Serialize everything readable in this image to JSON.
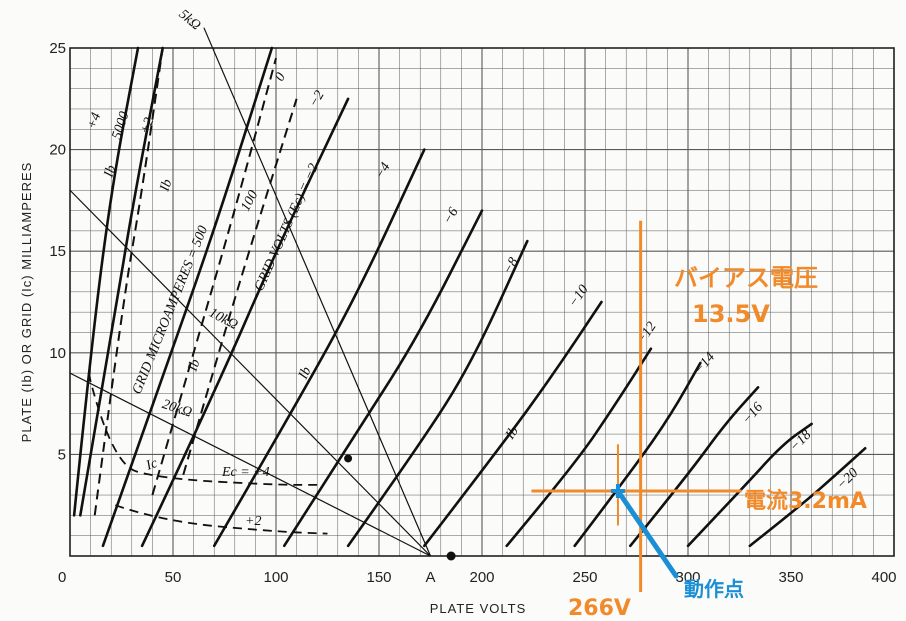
{
  "chart_data": {
    "type": "line",
    "xlabel": "PLATE VOLTS",
    "ylabel": "PLATE (Ib) OR GRID (Ic) MILLIAMPERES",
    "xlim": [
      0,
      400
    ],
    "ylim": [
      0,
      25
    ],
    "x_ticks": [
      "0",
      "50",
      "100",
      "150",
      "A",
      "200",
      "250",
      "300",
      "350",
      "400"
    ],
    "y_ticks": [
      "25",
      "20",
      "15",
      "10",
      "5"
    ],
    "grid": true,
    "plate_curves": [
      {
        "label": "+4",
        "points": [
          [
            2,
            2
          ],
          [
            10,
            10
          ],
          [
            20,
            18
          ],
          [
            33,
            25
          ]
        ]
      },
      {
        "label": "+2",
        "points": [
          [
            5,
            2
          ],
          [
            22,
            12
          ],
          [
            30,
            17
          ],
          [
            45,
            25
          ]
        ]
      },
      {
        "label": "0",
        "points": [
          [
            16,
            0.5
          ],
          [
            42,
            8
          ],
          [
            70,
            16
          ],
          [
            98,
            25
          ]
        ]
      },
      {
        "label": "−2",
        "points": [
          [
            35,
            0.5
          ],
          [
            70,
            8
          ],
          [
            100,
            15
          ],
          [
            135,
            22.5
          ]
        ]
      },
      {
        "label": "−4",
        "points": [
          [
            70,
            0.5
          ],
          [
            110,
            7.5
          ],
          [
            140,
            13
          ],
          [
            172,
            20
          ]
        ]
      },
      {
        "label": "−6",
        "points": [
          [
            104,
            0.5
          ],
          [
            142,
            6.5
          ],
          [
            170,
            11
          ],
          [
            200,
            17
          ]
        ]
      },
      {
        "label": "−8",
        "points": [
          [
            135,
            0.5
          ],
          [
            170,
            5.5
          ],
          [
            195,
            9.5
          ],
          [
            222,
            15.5
          ]
        ]
      },
      {
        "label": "−10",
        "points": [
          [
            172,
            0.5
          ],
          [
            210,
            5.5
          ],
          [
            235,
            9
          ],
          [
            258,
            12.5
          ]
        ]
      },
      {
        "label": "−12",
        "points": [
          [
            212,
            0.5
          ],
          [
            245,
            4.5
          ],
          [
            265,
            7.5
          ],
          [
            282,
            10.2
          ]
        ]
      },
      {
        "label": "−14",
        "points": [
          [
            245,
            0.5
          ],
          [
            275,
            4.5
          ],
          [
            292,
            7
          ],
          [
            306,
            9.5
          ]
        ]
      },
      {
        "label": "−16",
        "points": [
          [
            272,
            0.5
          ],
          [
            300,
            4
          ],
          [
            318,
            6.5
          ],
          [
            334,
            8.3
          ]
        ]
      },
      {
        "label": "−18",
        "points": [
          [
            300,
            0.5
          ],
          [
            328,
            3.5
          ],
          [
            346,
            5.5
          ],
          [
            360,
            6.5
          ]
        ]
      },
      {
        "label": "−20",
        "points": [
          [
            330,
            0.5
          ],
          [
            355,
            2.5
          ],
          [
            374,
            4.2
          ],
          [
            386,
            5.3
          ]
        ]
      }
    ],
    "grid_current_curves": [
      {
        "label": "+4",
        "points": [
          [
            9,
            9
          ],
          [
            20,
            4.5
          ],
          [
            45,
            3.8
          ],
          [
            100,
            3.5
          ],
          [
            120,
            3.5
          ]
        ]
      },
      {
        "label": "+2",
        "points": [
          [
            22,
            2.5
          ],
          [
            45,
            1.7
          ],
          [
            100,
            1.2
          ],
          [
            125,
            1.1
          ]
        ]
      }
    ],
    "screen_current_curves": [
      {
        "label": "5000",
        "points": [
          [
            12,
            2
          ],
          [
            25,
            12
          ],
          [
            35,
            18
          ],
          [
            45,
            25
          ]
        ]
      },
      {
        "label": "500",
        "points": [
          [
            40,
            3
          ],
          [
            60,
            10
          ],
          [
            80,
            17
          ],
          [
            100,
            24.5
          ]
        ]
      },
      {
        "label": "100",
        "points": [
          [
            55,
            4
          ],
          [
            75,
            11
          ],
          [
            90,
            16
          ],
          [
            110,
            22.5
          ]
        ]
      }
    ],
    "load_lines": [
      {
        "label": "5kΩ",
        "points": [
          [
            65,
            26
          ],
          [
            175,
            0
          ]
        ]
      },
      {
        "label": "10kΩ",
        "points": [
          [
            0,
            18
          ],
          [
            175,
            0
          ]
        ]
      },
      {
        "label": "20kΩ",
        "points": [
          [
            0,
            9
          ],
          [
            175,
            0
          ]
        ]
      }
    ],
    "operating_point": {
      "x": 266,
      "y": 3.2
    },
    "annotations": {
      "bias_title": "バイアス電圧",
      "bias_value": "13.5V",
      "current": "電流3.2mA",
      "op_point": "動作点",
      "plate_volts": "266V"
    },
    "curve_labels": {
      "ib": "Ib",
      "ic": "Ic",
      "grid_volts": "GRID VOLTS (Ec) = −2",
      "grid_microamperes": "GRID MICROAMPERES = 500",
      "ec_plus4": "Ec = +4",
      "plus2": "+2",
      "five_thousand": "5000",
      "one_hundred": "100"
    }
  },
  "colors": {
    "grid": "#5a5a5a",
    "curve": "#111111",
    "annotation_orange": "#f08a2a",
    "annotation_blue": "#1b8fd6"
  }
}
